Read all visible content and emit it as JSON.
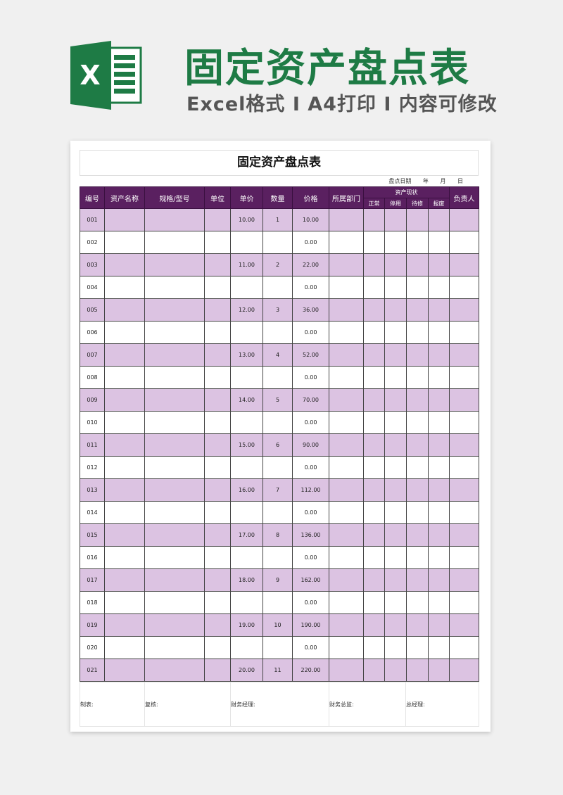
{
  "banner": {
    "title": "固定资产盘点表",
    "subtitle": "Excel格式 I A4打印 I 内容可修改",
    "logo_letter": "X",
    "brand_color": "#1e7b45"
  },
  "sheet": {
    "title": "固定资产盘点表",
    "date_label": "盘点日期 年 月 日",
    "headers": [
      "编号",
      "资产名称",
      "规格/型号",
      "单位",
      "单价",
      "数量",
      "价格",
      "所属部门",
      "资产现状",
      "负责人"
    ],
    "status_subheaders": [
      "正常",
      "停用",
      "待修",
      "报废"
    ],
    "rows": [
      [
        "001",
        "10.00",
        "1",
        "10.00"
      ],
      [
        "002",
        "",
        "",
        "0.00"
      ],
      [
        "003",
        "11.00",
        "2",
        "22.00"
      ],
      [
        "004",
        "",
        "",
        "0.00"
      ],
      [
        "005",
        "12.00",
        "3",
        "36.00"
      ],
      [
        "006",
        "",
        "",
        "0.00"
      ],
      [
        "007",
        "13.00",
        "4",
        "52.00"
      ],
      [
        "008",
        "",
        "",
        "0.00"
      ],
      [
        "009",
        "14.00",
        "5",
        "70.00"
      ],
      [
        "010",
        "",
        "",
        "0.00"
      ],
      [
        "011",
        "15.00",
        "6",
        "90.00"
      ],
      [
        "012",
        "",
        "",
        "0.00"
      ],
      [
        "013",
        "16.00",
        "7",
        "112.00"
      ],
      [
        "014",
        "",
        "",
        "0.00"
      ],
      [
        "015",
        "17.00",
        "8",
        "136.00"
      ],
      [
        "016",
        "",
        "",
        "0.00"
      ],
      [
        "017",
        "18.00",
        "9",
        "162.00"
      ],
      [
        "018",
        "",
        "",
        "0.00"
      ],
      [
        "019",
        "19.00",
        "10",
        "190.00"
      ],
      [
        "020",
        "",
        "",
        "0.00"
      ],
      [
        "021",
        "20.00",
        "11",
        "220.00"
      ]
    ],
    "footer": [
      "制表:",
      "复核:",
      "财务经理:",
      "财务总监:",
      "总经理:"
    ],
    "colors": {
      "header": "#5a2060",
      "stripe": "#dcc3e2"
    }
  }
}
